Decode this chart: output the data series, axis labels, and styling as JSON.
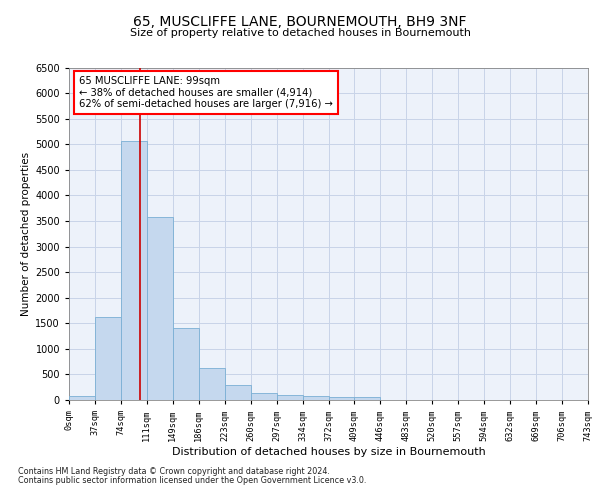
{
  "title_line1": "65, MUSCLIFFE LANE, BOURNEMOUTH, BH9 3NF",
  "title_line2": "Size of property relative to detached houses in Bournemouth",
  "xlabel": "Distribution of detached houses by size in Bournemouth",
  "ylabel": "Number of detached properties",
  "footnote_line1": "Contains HM Land Registry data © Crown copyright and database right 2024.",
  "footnote_line2": "Contains public sector information licensed under the Open Government Licence v3.0.",
  "annotation_line1": "65 MUSCLIFFE LANE: 99sqm",
  "annotation_line2": "← 38% of detached houses are smaller (4,914)",
  "annotation_line3": "62% of semi-detached houses are larger (7,916) →",
  "bar_color": "#c5d8ee",
  "bar_edge_color": "#7aafd4",
  "grid_color": "#c8d4e8",
  "vline_color": "#cc0000",
  "vline_x": 2.75,
  "bin_labels": [
    "0sqm",
    "37sqm",
    "74sqm",
    "111sqm",
    "149sqm",
    "186sqm",
    "223sqm",
    "260sqm",
    "297sqm",
    "334sqm",
    "372sqm",
    "409sqm",
    "446sqm",
    "483sqm",
    "520sqm",
    "557sqm",
    "594sqm",
    "632sqm",
    "669sqm",
    "706sqm",
    "743sqm"
  ],
  "bar_heights": [
    70,
    1620,
    5060,
    3570,
    1410,
    620,
    290,
    140,
    100,
    75,
    55,
    60,
    0,
    0,
    0,
    0,
    0,
    0,
    0,
    0
  ],
  "ylim": [
    0,
    6500
  ],
  "yticks": [
    0,
    500,
    1000,
    1500,
    2000,
    2500,
    3000,
    3500,
    4000,
    4500,
    5000,
    5500,
    6000,
    6500
  ],
  "background_color": "#edf2fa",
  "fig_width": 6.0,
  "fig_height": 5.0,
  "dpi": 100
}
